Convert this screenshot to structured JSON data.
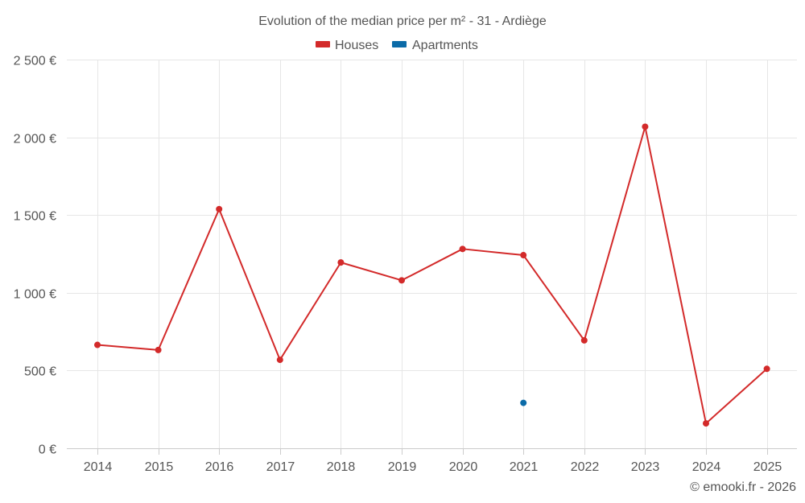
{
  "chart_data": {
    "type": "line",
    "title": "Evolution of the median price per m² - 31 - Ardiège",
    "categories": [
      "2014",
      "2015",
      "2016",
      "2017",
      "2018",
      "2019",
      "2020",
      "2021",
      "2022",
      "2023",
      "2024",
      "2025"
    ],
    "series": [
      {
        "name": "Houses",
        "color": "#d32a2a",
        "values": [
          665,
          632,
          1538,
          569,
          1195,
          1080,
          1282,
          1242,
          694,
          2068,
          160,
          511
        ]
      },
      {
        "name": "Apartments",
        "color": "#0b6ba8",
        "values": [
          null,
          null,
          null,
          null,
          null,
          null,
          null,
          292,
          null,
          null,
          null,
          null
        ]
      }
    ],
    "ylim": [
      0,
      2500
    ],
    "yticks": [
      0,
      500,
      1000,
      1500,
      2000,
      2500
    ],
    "ytick_labels": [
      "0 €",
      "500 €",
      "1 000 €",
      "1 500 €",
      "2 000 €",
      "2 500 €"
    ],
    "xlabel": "",
    "ylabel": "",
    "grid": true,
    "legend": "top-center"
  },
  "footer": "© emooki.fr - 2026"
}
